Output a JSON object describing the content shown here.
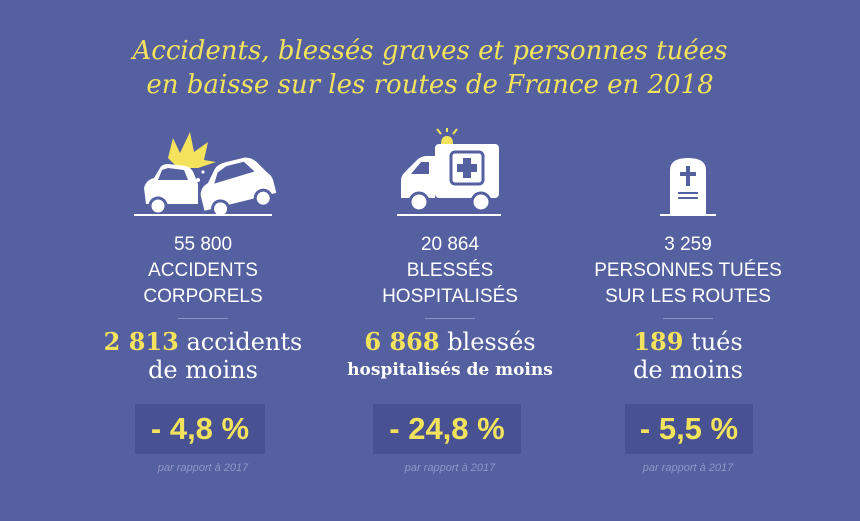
{
  "title": {
    "line1": "Accidents, blessés graves et personnes tuées",
    "line2": "en baisse sur les routes de France en 2018"
  },
  "columns": [
    {
      "icon": "car-crash-icon",
      "stat_number": "55 800",
      "stat_line1": "ACCIDENTS",
      "stat_line2": "CORPORELS",
      "diff_number": "2 813",
      "diff_text1": "accidents",
      "diff_text2": "de moins",
      "percent": "- 4,8 %",
      "note": "par rapport à 2017"
    },
    {
      "icon": "ambulance-icon",
      "stat_number": "20 864",
      "stat_line1": "BLESSÉS",
      "stat_line2": "HOSPITALISÉS",
      "diff_number": "6 868",
      "diff_text1": "blessés",
      "diff_text2": "hospitalisés de moins",
      "percent": "- 24,8 %",
      "note": "par rapport à 2017"
    },
    {
      "icon": "tombstone-icon",
      "stat_number": "3 259",
      "stat_line1": "PERSONNES TUÉES",
      "stat_line2": "SUR LES ROUTES",
      "diff_number": "189",
      "diff_text1": "tués",
      "diff_text2": "de moins",
      "percent": "- 5,5 %",
      "note": "par rapport à 2017"
    }
  ],
  "colors": {
    "background": "#5560a0",
    "accent": "#f2e25c",
    "box": "#485292",
    "note": "#8f96c8"
  }
}
